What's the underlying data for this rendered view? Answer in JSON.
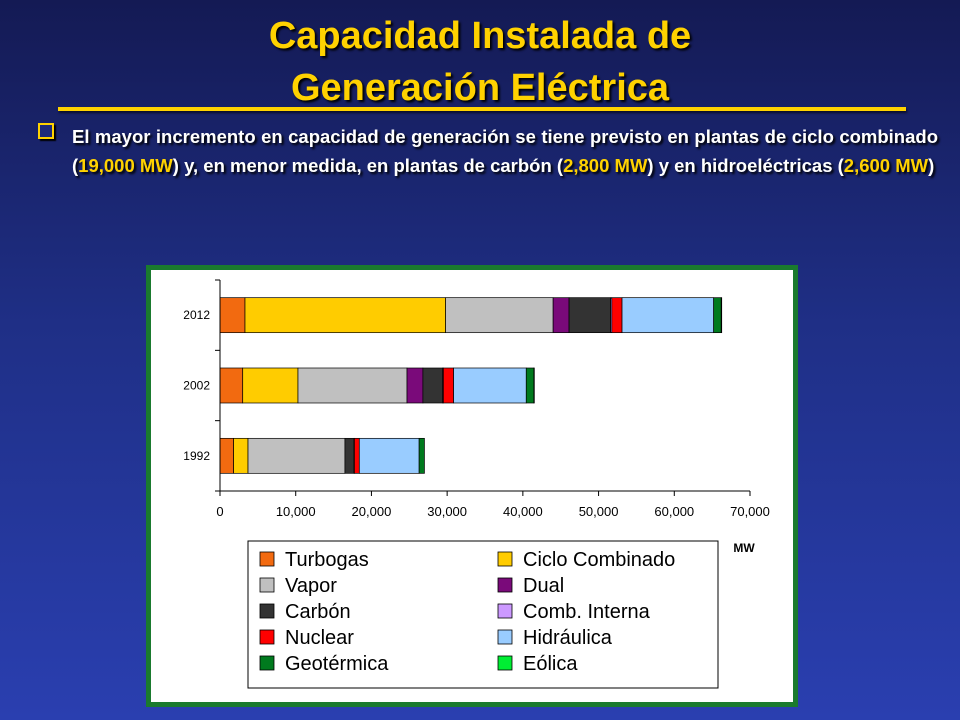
{
  "title_line1": "Capacidad Instalada de",
  "title_line2": "Generación Eléctrica",
  "bullet": {
    "t1": "El mayor incremento en capacidad de generación se tiene previsto en plantas de ciclo combinado (",
    "h1": "19,000 MW",
    "t2": ") y, en menor medida, en plantas de carbón (",
    "h2": "2,800 MW",
    "t3": ") y en hidroeléctricas (",
    "h3": "2,600 MW",
    "t4": ")"
  },
  "colors": {
    "background": "#1f2f86",
    "title": "#ffd200",
    "panel_border": "#1a7a2e"
  },
  "chart_data": {
    "type": "bar",
    "orientation": "horizontal",
    "stacked": true,
    "categories": [
      "2012",
      "2002",
      "1992"
    ],
    "xlabel": "MW",
    "xlim": [
      0,
      70000
    ],
    "xticks": [
      "0",
      "10,000",
      "20,000",
      "30,000",
      "40,000",
      "50,000",
      "60,000",
      "70,000"
    ],
    "grid": false,
    "legend_position": "bottom",
    "series": [
      {
        "name": "Turbogas",
        "color": "#f26a10",
        "values": [
          3300,
          3000,
          1800
        ]
      },
      {
        "name": "Ciclo Combinado",
        "color": "#ffcc00",
        "values": [
          26500,
          7300,
          1900
        ]
      },
      {
        "name": "Vapor",
        "color": "#c0c0c0",
        "values": [
          14200,
          14400,
          12800
        ]
      },
      {
        "name": "Dual",
        "color": "#7a0a7a",
        "values": [
          2100,
          2100,
          0
        ]
      },
      {
        "name": "Carbón",
        "color": "#333333",
        "values": [
          5500,
          2600,
          1200
        ]
      },
      {
        "name": "Comb. Interna",
        "color": "#cc99ff",
        "values": [
          150,
          100,
          50
        ]
      },
      {
        "name": "Nuclear",
        "color": "#ff0000",
        "values": [
          1350,
          1350,
          650
        ]
      },
      {
        "name": "Hidráulica",
        "color": "#99ccff",
        "values": [
          12100,
          9600,
          7900
        ]
      },
      {
        "name": "Geotérmica",
        "color": "#007a1e",
        "values": [
          1000,
          1000,
          700
        ]
      },
      {
        "name": "Eólica",
        "color": "#00ee33",
        "values": [
          50,
          2,
          0
        ]
      }
    ]
  }
}
